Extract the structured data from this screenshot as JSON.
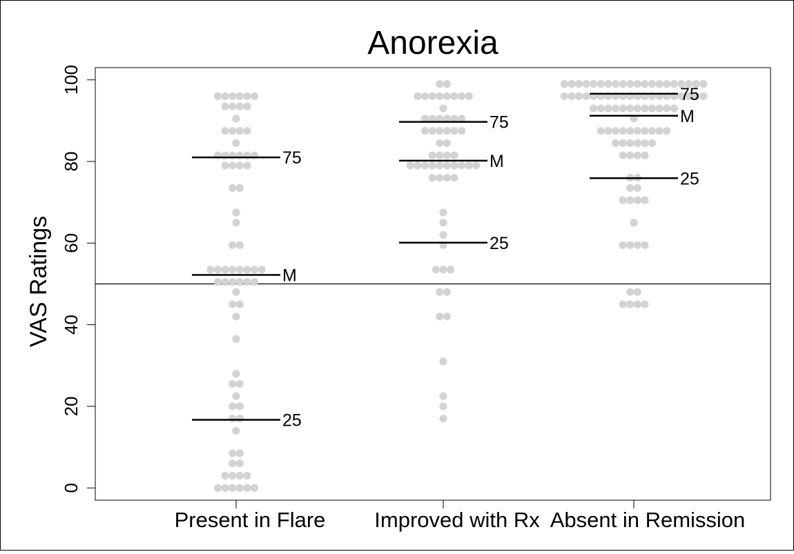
{
  "chart_data": {
    "type": "dot-strip",
    "title": "Anorexia",
    "ylabel": "VAS Ratings",
    "xlabel": "",
    "ylim": [
      -3,
      103
    ],
    "yticks": [
      0,
      20,
      40,
      60,
      80,
      100
    ],
    "reference_line": 50,
    "grid": false,
    "point_color": "#d3d3d3",
    "line_color": "#000000",
    "categories": [
      {
        "label": "Present in Flare",
        "rows": [
          {
            "y": 96,
            "n": 6
          },
          {
            "y": 93.5,
            "n": 4
          },
          {
            "y": 90.5,
            "n": 1
          },
          {
            "y": 87.5,
            "n": 4
          },
          {
            "y": 84.5,
            "n": 1
          },
          {
            "y": 81.5,
            "n": 6
          },
          {
            "y": 79,
            "n": 4
          },
          {
            "y": 73.5,
            "n": 2
          },
          {
            "y": 67.5,
            "n": 1
          },
          {
            "y": 65,
            "n": 1
          },
          {
            "y": 59.5,
            "n": 2
          },
          {
            "y": 53.5,
            "n": 8
          },
          {
            "y": 50.5,
            "n": 6
          },
          {
            "y": 48,
            "n": 1
          },
          {
            "y": 45,
            "n": 2
          },
          {
            "y": 42,
            "n": 1
          },
          {
            "y": 36.5,
            "n": 1
          },
          {
            "y": 28,
            "n": 1
          },
          {
            "y": 25.5,
            "n": 2
          },
          {
            "y": 22.5,
            "n": 1
          },
          {
            "y": 20,
            "n": 2
          },
          {
            "y": 17,
            "n": 2
          },
          {
            "y": 14,
            "n": 1
          },
          {
            "y": 8.5,
            "n": 2
          },
          {
            "y": 6,
            "n": 2
          },
          {
            "y": 3,
            "n": 4
          },
          {
            "y": 0,
            "n": 6
          }
        ],
        "lines": [
          {
            "label": "75",
            "y": 81
          },
          {
            "label": "M",
            "y": 52.2
          },
          {
            "label": "25",
            "y": 16.7
          }
        ]
      },
      {
        "label": "Improved with Rx",
        "rows": [
          {
            "y": 99,
            "n": 2
          },
          {
            "y": 96,
            "n": 8
          },
          {
            "y": 93,
            "n": 1
          },
          {
            "y": 90.5,
            "n": 6
          },
          {
            "y": 87.5,
            "n": 6
          },
          {
            "y": 84.5,
            "n": 2
          },
          {
            "y": 81.5,
            "n": 4
          },
          {
            "y": 79,
            "n": 10
          },
          {
            "y": 76,
            "n": 4
          },
          {
            "y": 67.5,
            "n": 1
          },
          {
            "y": 65,
            "n": 1
          },
          {
            "y": 62,
            "n": 1
          },
          {
            "y": 59.5,
            "n": 1
          },
          {
            "y": 53.5,
            "n": 3
          },
          {
            "y": 48,
            "n": 2
          },
          {
            "y": 42,
            "n": 2
          },
          {
            "y": 31,
            "n": 1
          },
          {
            "y": 22.5,
            "n": 1
          },
          {
            "y": 20,
            "n": 1
          },
          {
            "y": 17,
            "n": 1
          }
        ],
        "lines": [
          {
            "label": "75",
            "y": 89.7
          },
          {
            "label": "M",
            "y": 80.2
          },
          {
            "label": "25",
            "y": 60.1
          }
        ]
      },
      {
        "label": "Absent in Remission",
        "rows": [
          {
            "y": 99,
            "n": 20
          },
          {
            "y": 96,
            "n": 20
          },
          {
            "y": 93,
            "n": 12
          },
          {
            "y": 90.5,
            "n": 1
          },
          {
            "y": 87.5,
            "n": 10
          },
          {
            "y": 84.5,
            "n": 6
          },
          {
            "y": 81.5,
            "n": 4
          },
          {
            "y": 76,
            "n": 2
          },
          {
            "y": 73.5,
            "n": 2
          },
          {
            "y": 70.5,
            "n": 4
          },
          {
            "y": 65,
            "n": 1
          },
          {
            "y": 59.5,
            "n": 4
          },
          {
            "y": 48,
            "n": 2
          },
          {
            "y": 45,
            "n": 4
          }
        ],
        "lines": [
          {
            "label": "75",
            "y": 96.6
          },
          {
            "label": "M",
            "y": 91.2
          },
          {
            "label": "25",
            "y": 75.9
          }
        ]
      }
    ]
  }
}
